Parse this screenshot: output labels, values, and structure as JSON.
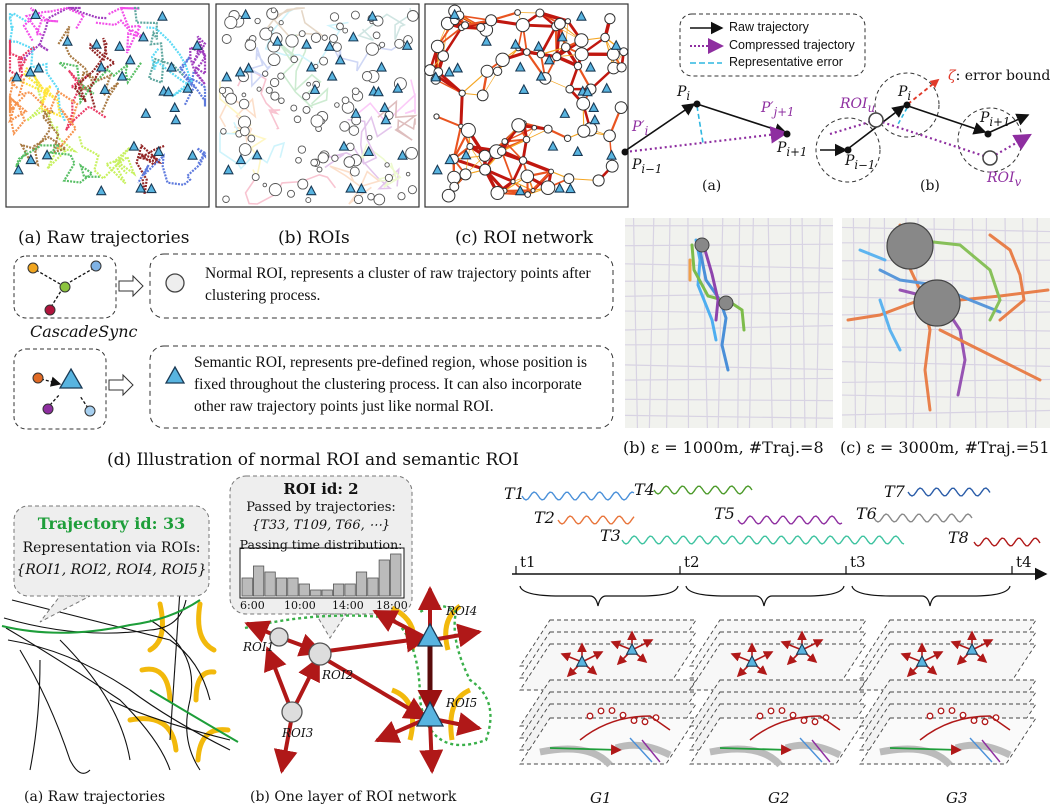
{
  "panels": {
    "caption_a": "(a) Raw trajectories",
    "caption_b": "(b) ROIs",
    "caption_c": "(c) ROI network",
    "caption_d": "(d) Illustration of normal ROI and semantic ROI"
  },
  "legend": {
    "raw": "Raw trajectory",
    "compressed": "Compressed trajectory",
    "rep_error": "Representative error",
    "error_bound": ": error bound",
    "sub_a": "(a)",
    "sub_b": "(b)"
  },
  "roi_box": {
    "cascade_label": "CascadeSync",
    "normal_text": "Normal ROI, represents a cluster of raw trajectory points after clustering process.",
    "semantic_text": "Semantic ROI, represents pre-defined region, whose position is fixed throughout the clustering process. It can also incorporate other raw trajectory points just like normal ROI."
  },
  "maps": {
    "caption_b": "(b) ε = 1000m, #Traj.=8",
    "caption_c": "(c) ε = 3000m, #Traj.=51"
  },
  "bottom_left": {
    "traj_title": "Trajectory id: 33",
    "traj_rep": "Representation via ROIs:",
    "traj_set": "{ROI1, ROI2, ROI4, ROI5}",
    "roi_title": "ROI id: 2",
    "passed_by": "Passed by trajectories:",
    "passed_set": "{T33, T109, T66, ⋯}",
    "passing_time": "Passing time distribution:",
    "hist_ticks": [
      "6:00",
      "10:00",
      "14:00",
      "18:00"
    ],
    "hist_values": [
      3,
      5,
      4,
      3,
      3,
      2,
      1,
      1,
      2,
      2,
      4,
      3,
      6,
      7
    ],
    "roi_labels": [
      "ROI1",
      "ROI2",
      "ROI3",
      "ROI4",
      "ROI5"
    ],
    "caption_a": "(a) Raw trajectories",
    "caption_b": "(b) One layer of ROI network"
  },
  "timeline": {
    "traj_labels": [
      "T1",
      "T2",
      "T3",
      "T4",
      "T5",
      "T6",
      "T7",
      "T8"
    ],
    "time_labels": [
      "t1",
      "t2",
      "t3",
      "t4"
    ],
    "group_labels": [
      "G1",
      "G2",
      "G3"
    ]
  },
  "colors": {
    "roi_red": "#b01818",
    "semantic_blue": "#58b4e0",
    "road_yellow": "#f2b90c",
    "compressed_purple": "#8e2ea0",
    "error_cyan": "#2fb7e0",
    "green": "#1e9e3a"
  }
}
